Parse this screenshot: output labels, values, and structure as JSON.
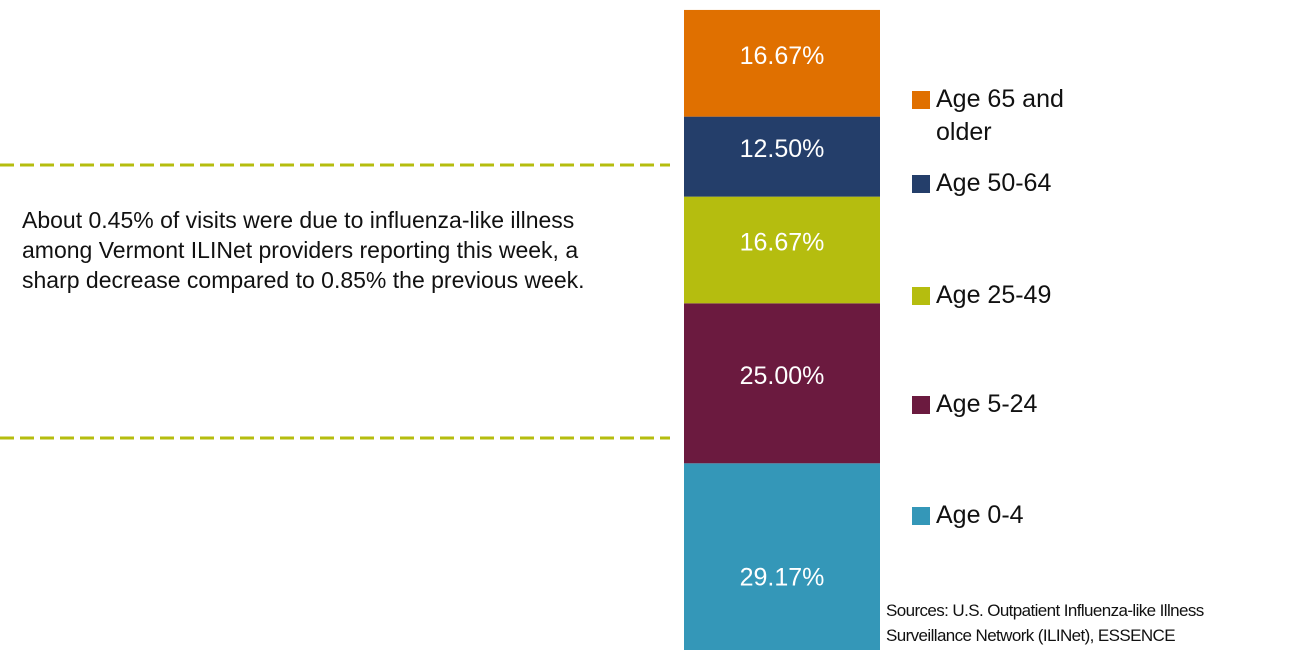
{
  "chart_data": {
    "type": "stacked-bar",
    "annotation": "About 0.45% of visits were due to influenza-like illness among Vermont ILINet providers reporting this week, a sharp decrease compared to 0.85% the previous week.",
    "source": "Sources: U.S. Outpatient Influenza-like Illness Surveillance Network (ILINet), ESSENCE",
    "ylim": [
      0,
      100
    ],
    "series": [
      {
        "name": "Age 0-4",
        "color": "#3497b8",
        "values": [
          29.17
        ],
        "value_labels": [
          "29.17%"
        ]
      },
      {
        "name": "Age 5-24",
        "color": "#6b1a3f",
        "values": [
          25.0
        ],
        "value_labels": [
          "25.00%"
        ]
      },
      {
        "name": "Age 25-49",
        "color": "#b5bd0f",
        "values": [
          16.67
        ],
        "value_labels": [
          "16.67%"
        ]
      },
      {
        "name": "Age 50-64",
        "color": "#243e6a",
        "values": [
          12.5
        ],
        "value_labels": [
          "12.50%"
        ]
      },
      {
        "name": "Age 65 and older",
        "color": "#e07000",
        "values": [
          16.67
        ],
        "value_labels": [
          "16.67%"
        ]
      }
    ]
  }
}
